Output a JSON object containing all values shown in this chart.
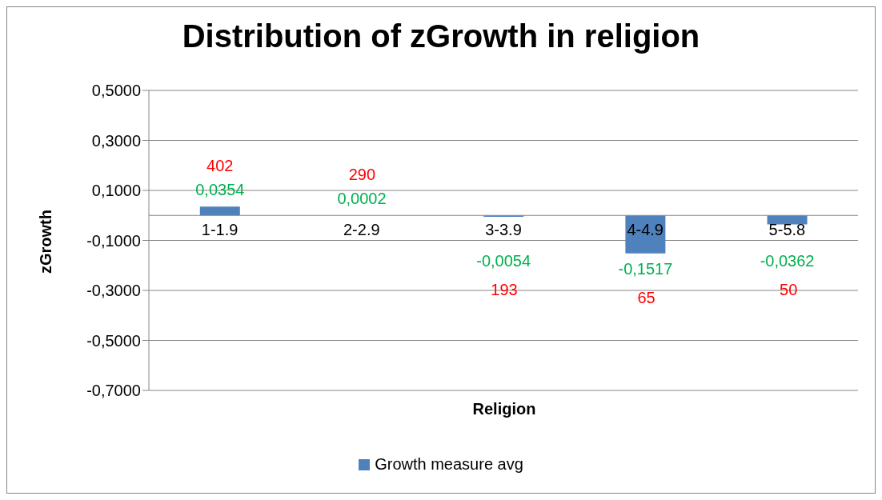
{
  "chart_data": {
    "type": "bar",
    "title": "Distribution of zGrowth in religion",
    "xlabel": "Religion",
    "ylabel": "zGrowth",
    "categories": [
      "1-1.9",
      "2-2.9",
      "3-3.9",
      "4-4.9",
      "5-5.8"
    ],
    "series": [
      {
        "name": "Growth measure avg",
        "color": "#4f81bd",
        "values": [
          0.0354,
          0.0002,
          -0.0054,
          -0.1517,
          -0.0362
        ],
        "value_labels": [
          "0,0354",
          "0,0002",
          "-0,0054",
          "-0,1517",
          "-0,0362"
        ]
      }
    ],
    "ylim": [
      -0.7,
      0.5
    ],
    "yticks": [
      {
        "value": 0.5,
        "label": "0,5000"
      },
      {
        "value": 0.3,
        "label": "0,3000"
      },
      {
        "value": 0.1,
        "label": "0,1000"
      },
      {
        "value": -0.1,
        "label": "-0,1000"
      },
      {
        "value": -0.3,
        "label": "-0,3000"
      },
      {
        "value": -0.5,
        "label": "-0,5000"
      },
      {
        "value": -0.7,
        "label": "-0,7000"
      }
    ],
    "annotations": [
      "402",
      "290",
      "193",
      "65",
      "50"
    ],
    "grid": "y",
    "legend": "bottom"
  }
}
